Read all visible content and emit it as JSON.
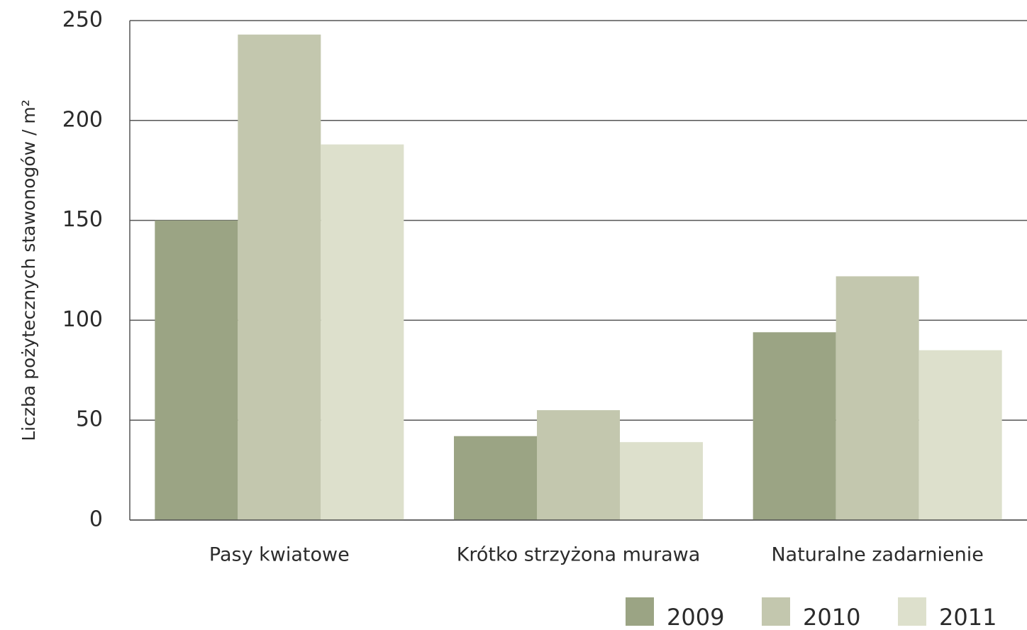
{
  "chart_data": {
    "type": "bar",
    "y_label": "Liczba pożytecznych stawonogów / m²",
    "categories": [
      "Pasy kwiatowe",
      "Krótko strzyżona murawa",
      "Naturalne zadarnienie"
    ],
    "series": [
      {
        "name": "2009",
        "color": "#9ba484",
        "values": [
          150,
          42,
          94
        ]
      },
      {
        "name": "2010",
        "color": "#c3c7ae",
        "values": [
          243,
          55,
          122
        ]
      },
      {
        "name": "2011",
        "color": "#dde0cc",
        "values": [
          188,
          39,
          85
        ]
      }
    ],
    "ylim": [
      0,
      250
    ],
    "yticks": [
      0,
      50,
      100,
      150,
      200,
      250
    ],
    "grid": true,
    "legend": "bottom-right"
  }
}
